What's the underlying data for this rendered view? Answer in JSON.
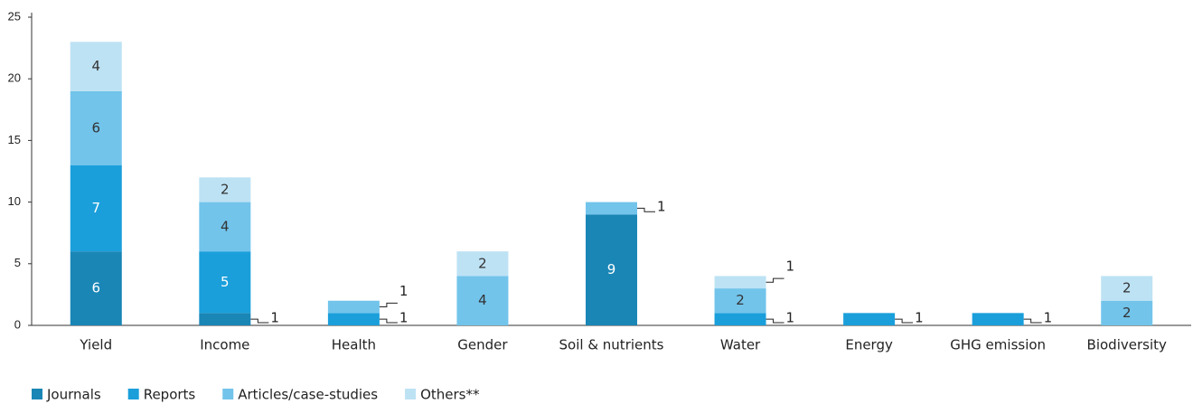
{
  "chart_data": {
    "type": "stacked_bar",
    "categories": [
      "Yield",
      "Income",
      "Health",
      "Gender",
      "Soil & nutrients",
      "Water",
      "Energy",
      "GHG emission",
      "Biodiversity"
    ],
    "series": [
      {
        "name": "Journals",
        "color": "#1a86b6",
        "values": [
          6,
          1,
          0,
          0,
          9,
          0,
          0,
          0,
          0
        ]
      },
      {
        "name": "Reports",
        "color": "#1a9fdb",
        "values": [
          7,
          5,
          1,
          0,
          0,
          1,
          1,
          1,
          0
        ]
      },
      {
        "name": "Articles/case-studies",
        "color": "#72c4eb",
        "values": [
          6,
          4,
          1,
          4,
          1,
          2,
          0,
          0,
          2
        ]
      },
      {
        "name": "Others**",
        "color": "#bde2f4",
        "values": [
          4,
          2,
          0,
          2,
          0,
          1,
          0,
          0,
          2
        ]
      }
    ],
    "ylim": [
      0,
      25
    ],
    "yticks": [
      0,
      5,
      10,
      15,
      20,
      25
    ],
    "grid": false,
    "legend": "bottom-left"
  }
}
